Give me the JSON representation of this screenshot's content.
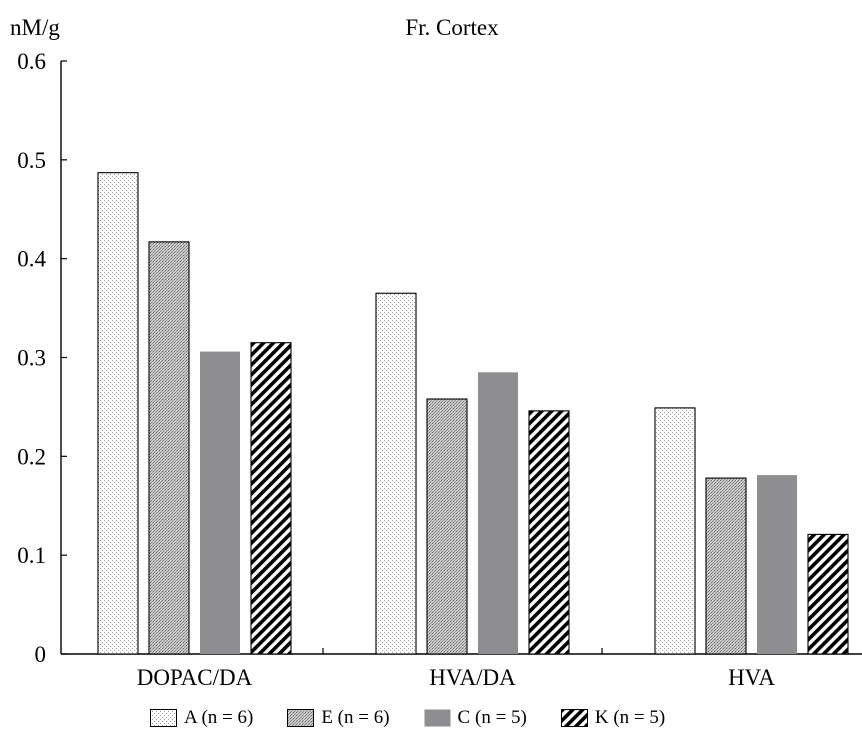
{
  "chart_data": {
    "type": "bar",
    "title": "Fr. Cortex",
    "ylabel": "nM/g",
    "xlabel": "",
    "ylim": [
      0,
      0.6
    ],
    "yticks": [
      "0",
      "0.1",
      "0.2",
      "0.3",
      "0.4",
      "0.5",
      "0.6"
    ],
    "categories": [
      "DOPAC/DA",
      "HVA/DA",
      "HVA"
    ],
    "series": [
      {
        "name": "A",
        "n_label": "n = 6",
        "pattern": "dots",
        "values": [
          0.487,
          0.365,
          0.249
        ]
      },
      {
        "name": "E",
        "n_label": "n = 6",
        "pattern": "dense",
        "values": [
          0.417,
          0.258,
          0.178
        ]
      },
      {
        "name": "C",
        "n_label": "n = 5",
        "pattern": "solid",
        "values": [
          0.306,
          0.285,
          0.181
        ]
      },
      {
        "name": "K",
        "n_label": "n = 5",
        "pattern": "hatch",
        "values": [
          0.315,
          0.246,
          0.121
        ]
      }
    ],
    "grid": false,
    "legend_position": "bottom",
    "colors": {
      "solid": "#8e8e90",
      "dense": "#b4b4b4",
      "dots": "#bdbdbd"
    }
  }
}
